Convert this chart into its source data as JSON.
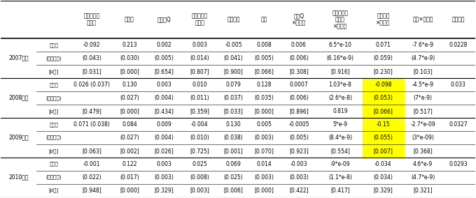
{
  "col_headers": [
    "三大都市圏\nダミー",
    "定数項",
    "限界のQ",
    "キャッシュ\nフロー",
    "負債比率",
    "土地",
    "限界Q\n×ダミー",
    "キャッシュ\nフロー\n×ダミー",
    "負債比率\n×ダミー",
    "土地×ダミー",
    "決定係数"
  ],
  "years": [
    "2007年度",
    "2008年度",
    "2009年度",
    "2010年度"
  ],
  "row_labels": [
    "推定値",
    "(標準誤差)",
    "[p値]"
  ],
  "rows": {
    "2007年度": {
      "推定値": [
        "-0.092",
        "0.213",
        "0.002",
        "0.003",
        "-0.005",
        "0.008",
        "0.006",
        "6.5*e-10",
        "0.071",
        "-7.6*e-9",
        "0.0228"
      ],
      "(標準誤差)": [
        "(0.043)",
        "(0.030)",
        "(0.005)",
        "(0.014)",
        "(0.041)",
        "(0.005)",
        "(0.006)",
        "(6.16*e-9)",
        "(0.059)",
        "(4.7*e-9)",
        ""
      ],
      "[p値]": [
        "[0.031]",
        "[0.000]",
        "[0.654]",
        "[0.807]",
        "[0.900]",
        "[0.066]",
        "[0.308]",
        "[0.916]",
        "[0.230]",
        "[0.103]",
        ""
      ]
    },
    "2008年度": {
      "推定値": [
        "0.026 (0.037)",
        "0.130",
        "0.003",
        "0.010",
        "0.079",
        "0.128",
        "0.0007",
        "1.03*e-8",
        "-0.098",
        "-4.5*e-9",
        "0.033"
      ],
      "(標準誤差)": [
        "",
        "(0.027)",
        "(0.004)",
        "(0.011)",
        "(0.037)",
        "(0.035)",
        "(0.006)",
        "(2.6*e-8)",
        "(0.053)",
        "(7*e-9)",
        ""
      ],
      "[p値]": [
        "[0.479]",
        "[0.000]",
        "[0.434]",
        "[0.359]",
        "[0.033]",
        "[0.000]",
        "[0.896]",
        "0.819",
        "[0.066]",
        "[0.517]",
        ""
      ]
    },
    "2009年度": {
      "推定値": [
        "0.071 (0.038)",
        "0.084",
        "0.009",
        "-0.004",
        "0.130",
        "0.005",
        "-0.0005",
        "5*e-9",
        "-0.15",
        "-2.7*e-09",
        "0.0327"
      ],
      "(標準誤差)": [
        "",
        "(0.027)",
        "(0.004)",
        "(0.010)",
        "(0.038)",
        "(0.003)",
        "(0.005)",
        "(8.4*e-9)",
        "(0.055)",
        "(3*e-09)",
        ""
      ],
      "[p値]": [
        "[0.063]",
        "[0.002]",
        "[0.026]",
        "[0.725]",
        "[0.001]",
        "[0.070]",
        "[0.923]",
        "[0.554]",
        "[0.007]",
        "[0.368]",
        ""
      ]
    },
    "2010年度": {
      "推定値": [
        "-0.001",
        "0.122",
        "0.003",
        "0.025",
        "0.069",
        "0.014",
        "-0.003",
        "-9*e-09",
        "-0.034",
        "4.6*e-9",
        "0.0293"
      ],
      "(標準誤差)": [
        "(0.022)",
        "(0.017)",
        "(0.003)",
        "(0.008)",
        "(0.025)",
        "(0.003)",
        "(0.003)",
        "(1.1*e-8)",
        "(0.034)",
        "(4.7*e-9)",
        ""
      ],
      "[p値]": [
        "[0.948]",
        "[0.000]",
        "[0.329]",
        "[0.003]",
        "[0.006]",
        "[0.000]",
        "[0.422]",
        "[0.417]",
        "[0.329]",
        "[0.321]",
        ""
      ]
    }
  },
  "highlight_cells": [
    {
      "year": "2008年度",
      "row": "推定値",
      "col": 8,
      "color": "#ffff00"
    },
    {
      "year": "2008年度",
      "row": "(標準誤差)",
      "col": 8,
      "color": "#ffff00"
    },
    {
      "year": "2008年度",
      "row": "[p値]",
      "col": 8,
      "color": "#ffff00"
    },
    {
      "year": "2009年度",
      "row": "推定値",
      "col": 8,
      "color": "#ffff00"
    },
    {
      "year": "2009年度",
      "row": "(標準誤差)",
      "col": 8,
      "color": "#ffff00"
    },
    {
      "year": "2009年度",
      "row": "[p値]",
      "col": 8,
      "color": "#ffff00"
    }
  ],
  "background_color": "#ffffff",
  "line_color": "#000000",
  "text_color": "#000000",
  "fontsize": 5.5,
  "header_fontsize": 5.5
}
